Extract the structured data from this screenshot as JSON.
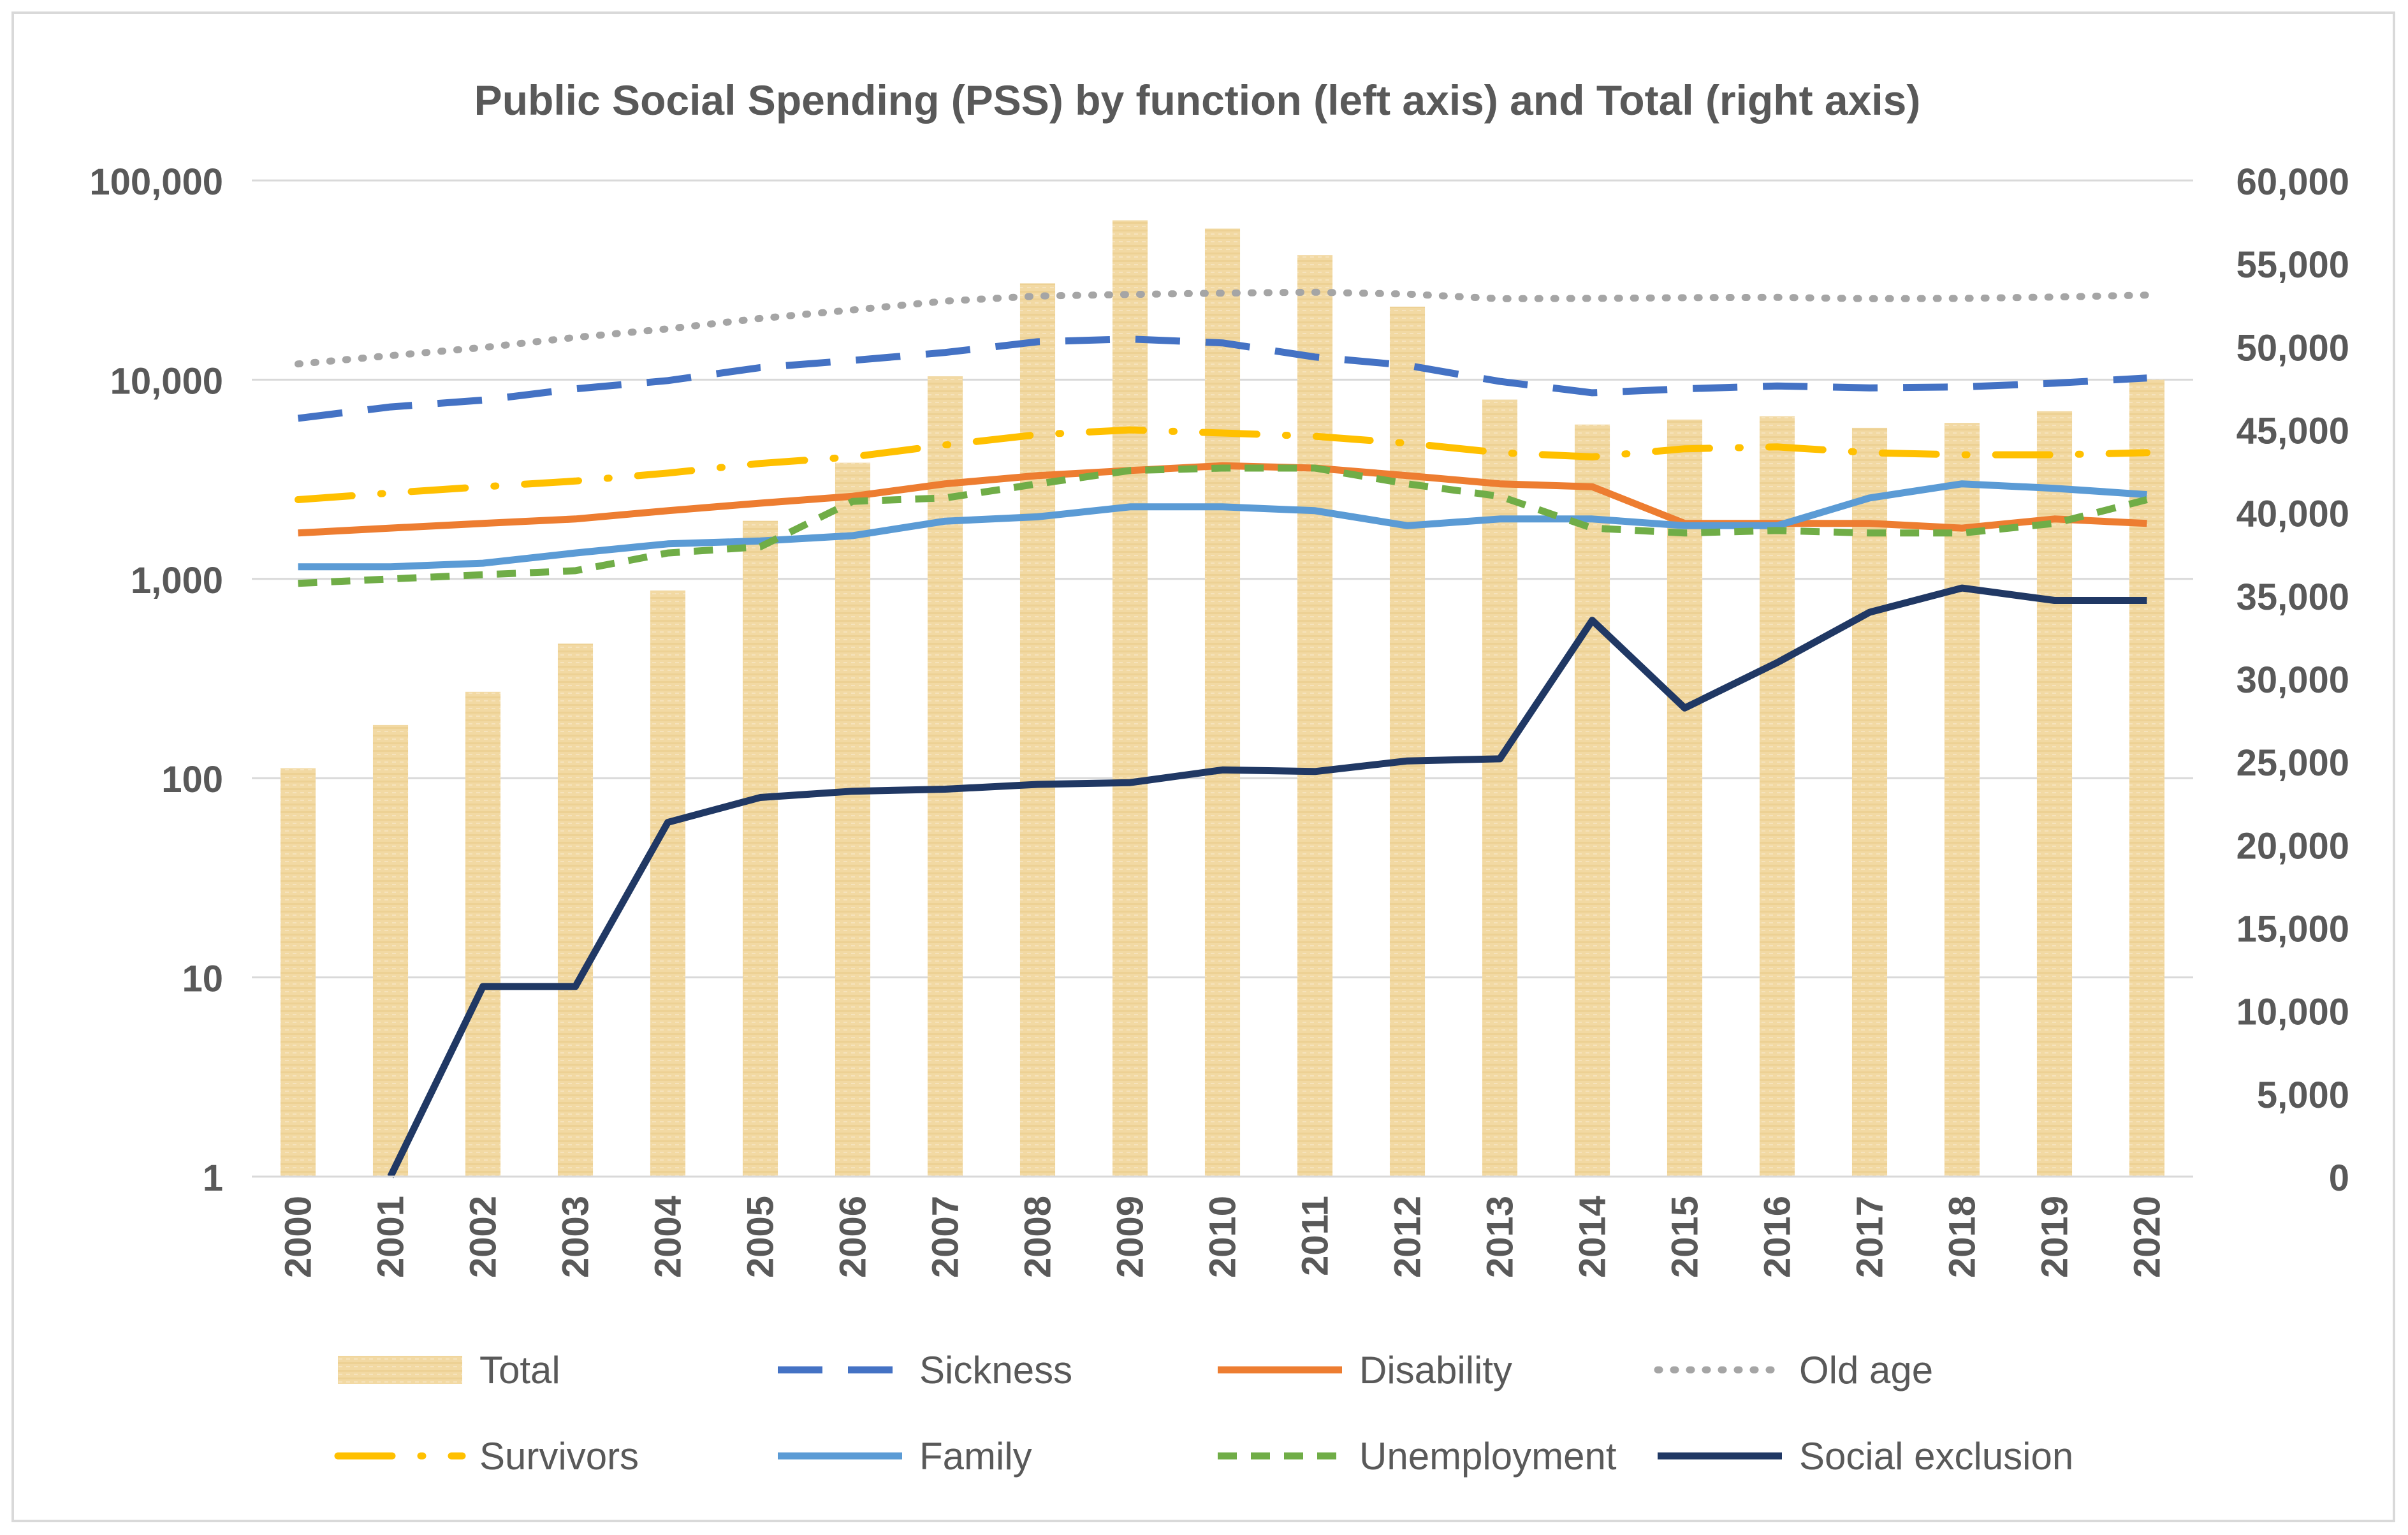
{
  "chart_data": {
    "type": "bar+line",
    "title": "Public Social Spending (PSS) by function (left axis) and Total (right axis)",
    "categories": [
      "2000",
      "2001",
      "2002",
      "2003",
      "2004",
      "2005",
      "2006",
      "2007",
      "2008",
      "2009",
      "2010",
      "2011",
      "2012",
      "2013",
      "2014",
      "2015",
      "2016",
      "2017",
      "2018",
      "2019",
      "2020"
    ],
    "left_axis": {
      "scale": "log10",
      "range": [
        1,
        100000
      ],
      "ticks": [
        1,
        10,
        100,
        1000,
        10000,
        100000
      ],
      "tick_labels": [
        "1",
        "10",
        "100",
        "1,000",
        "10,000",
        "100,000"
      ]
    },
    "right_axis": {
      "scale": "linear",
      "range": [
        0,
        60000
      ],
      "ticks": [
        0,
        5000,
        10000,
        15000,
        20000,
        25000,
        30000,
        35000,
        40000,
        45000,
        50000,
        55000,
        60000
      ],
      "tick_labels": [
        "0",
        "5,000",
        "10,000",
        "15,000",
        "20,000",
        "25,000",
        "30,000",
        "35,000",
        "40,000",
        "45,000",
        "50,000",
        "55,000",
        "60,000"
      ]
    },
    "bar_series": {
      "name": "Total",
      "axis": "right",
      "color": "#f2d9a3",
      "values": [
        24600,
        27200,
        29200,
        32100,
        35300,
        39500,
        43000,
        48200,
        53800,
        57600,
        57100,
        55500,
        52400,
        46800,
        45300,
        45600,
        45800,
        45100,
        45400,
        46100,
        48000
      ]
    },
    "line_series": [
      {
        "name": "Sickness",
        "axis": "left",
        "color": "#4472c4",
        "style": "longdash",
        "values": [
          6400,
          7300,
          7900,
          9000,
          9900,
          11500,
          12500,
          13700,
          15500,
          16000,
          15300,
          13000,
          11800,
          9800,
          8600,
          9000,
          9300,
          9100,
          9200,
          9600,
          10200
        ]
      },
      {
        "name": "Disability",
        "axis": "left",
        "color": "#ed7d31",
        "style": "solid",
        "values": [
          1700,
          1800,
          1900,
          2000,
          2200,
          2400,
          2600,
          3000,
          3300,
          3500,
          3700,
          3600,
          3300,
          3000,
          2900,
          1900,
          1900,
          1900,
          1800,
          2000,
          1900
        ]
      },
      {
        "name": "Old age",
        "axis": "left",
        "color": "#a5a5a5",
        "style": "dot",
        "values": [
          12000,
          13200,
          14500,
          16300,
          18000,
          20300,
          22400,
          24800,
          26300,
          26800,
          27200,
          27500,
          26900,
          25500,
          25600,
          25800,
          25900,
          25500,
          25600,
          26000,
          26600
        ]
      },
      {
        "name": "Survivors",
        "axis": "left",
        "color": "#ffc000",
        "style": "dashdot",
        "values": [
          2500,
          2700,
          2900,
          3100,
          3400,
          3800,
          4100,
          4700,
          5300,
          5600,
          5400,
          5200,
          4800,
          4300,
          4100,
          4500,
          4600,
          4300,
          4200,
          4200,
          4300
        ]
      },
      {
        "name": "Family",
        "axis": "left",
        "color": "#5b9bd5",
        "style": "solid",
        "values": [
          1150,
          1150,
          1200,
          1350,
          1500,
          1550,
          1650,
          1950,
          2050,
          2300,
          2300,
          2200,
          1850,
          2000,
          2000,
          1850,
          1850,
          2550,
          3000,
          2850,
          2650
        ]
      },
      {
        "name": "Unemployment",
        "axis": "left",
        "color": "#70ad47",
        "style": "shortdash",
        "values": [
          950,
          1000,
          1050,
          1100,
          1350,
          1450,
          2450,
          2550,
          3000,
          3500,
          3600,
          3600,
          3000,
          2600,
          1800,
          1700,
          1750,
          1700,
          1700,
          1900,
          2500
        ]
      },
      {
        "name": "Social exclusion",
        "axis": "left",
        "color": "#203864",
        "style": "solid",
        "values": [
          null,
          1,
          9,
          9,
          60,
          80,
          86,
          88,
          93,
          95,
          110,
          108,
          122,
          125,
          620,
          225,
          380,
          680,
          900,
          780,
          780
        ]
      }
    ],
    "legend_rows": [
      [
        "Total",
        "Sickness",
        "Disability",
        "Old age"
      ],
      [
        "Survivors",
        "Family",
        "Unemployment",
        "Social exclusion"
      ]
    ],
    "legend_position": "bottom",
    "gridlines": "horizontal"
  }
}
